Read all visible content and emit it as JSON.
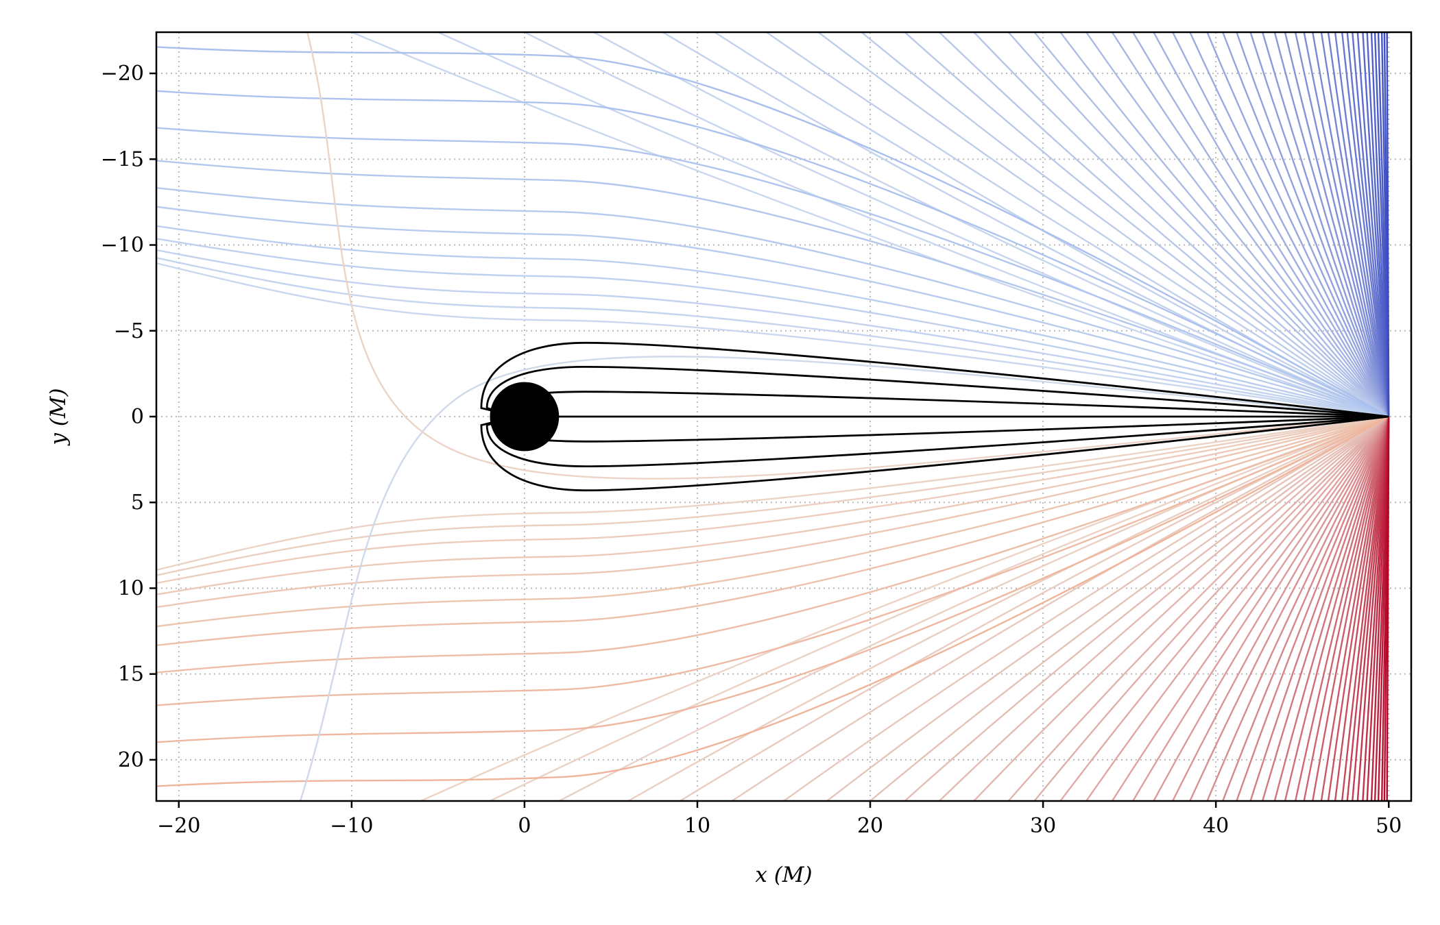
{
  "chart_data": {
    "type": "line",
    "title": "",
    "xlabel": "x (M)",
    "ylabel": "y (M)",
    "xlim": [
      -21.3,
      51.3
    ],
    "ylim": [
      -22.4,
      22.4
    ],
    "xticks": [
      "−20",
      "−10",
      "0",
      "10",
      "20",
      "30",
      "40",
      "50"
    ],
    "yticks": [
      "−20",
      "−15",
      "−10",
      "−5",
      "0",
      "5",
      "10",
      "15",
      "20"
    ],
    "grid": true,
    "legend": "none",
    "description_of_series": {
      "observer": [
        50,
        0
      ],
      "black_hole": {
        "center": [
          0,
          0
        ],
        "radius": 2.0,
        "color": "#000000"
      },
      "captured_rays": {
        "color": "#000000",
        "impact_parameters": [
          4.3,
          2.9,
          1.45,
          0.0,
          -1.45,
          -2.9,
          -4.3
        ],
        "turn_x": -2.5
      },
      "escaping_rays": {
        "impact_parameters_upper": [
          5.5,
          6.2,
          7.0,
          8.0,
          9.0,
          10.4,
          11.7,
          13.5,
          15.6,
          17.9,
          20.6
        ],
        "impact_parameters_lower": [
          -5.5,
          -6.2,
          -7.0,
          -8.0,
          -9.0,
          -10.4,
          -11.7,
          -13.5,
          -15.6,
          -17.9,
          -20.6
        ],
        "fan_targets_top_x": [
          -10,
          -5,
          0,
          4,
          8,
          11,
          14,
          17,
          19.5,
          22,
          24,
          26,
          28,
          29.5,
          31,
          32.5,
          34,
          35.2,
          36.4,
          37.5,
          38.5,
          39.5,
          40.4,
          41.2,
          42,
          42.7,
          43.4,
          44,
          44.6,
          45.1,
          45.6,
          46.1,
          46.5,
          46.9,
          47.3,
          47.6,
          47.9,
          48.2,
          48.5,
          48.75,
          49,
          49.2,
          49.4,
          49.6,
          49.75,
          49.9
        ],
        "fan_targets_bottom_x": [
          -6,
          -2,
          2,
          6,
          9,
          12,
          15,
          17.5,
          20,
          22,
          24,
          26,
          28,
          29.5,
          31,
          32.5,
          34,
          35.2,
          36.4,
          37.5,
          38.5,
          39.5,
          40.4,
          41.2,
          42,
          42.7,
          43.4,
          44,
          44.6,
          45.1,
          45.6,
          46.1,
          46.5,
          46.9,
          47.3,
          47.6,
          47.9,
          48.2,
          48.5,
          48.75,
          49,
          49.2,
          49.4,
          49.6,
          49.75,
          49.9
        ]
      },
      "colormap": "coolwarm",
      "color_upper_far": "#3b4cc0",
      "color_upper_near": "#c9d7ef",
      "color_lower_near": "#ebd3c6",
      "color_lower_far": "#b40426"
    }
  }
}
